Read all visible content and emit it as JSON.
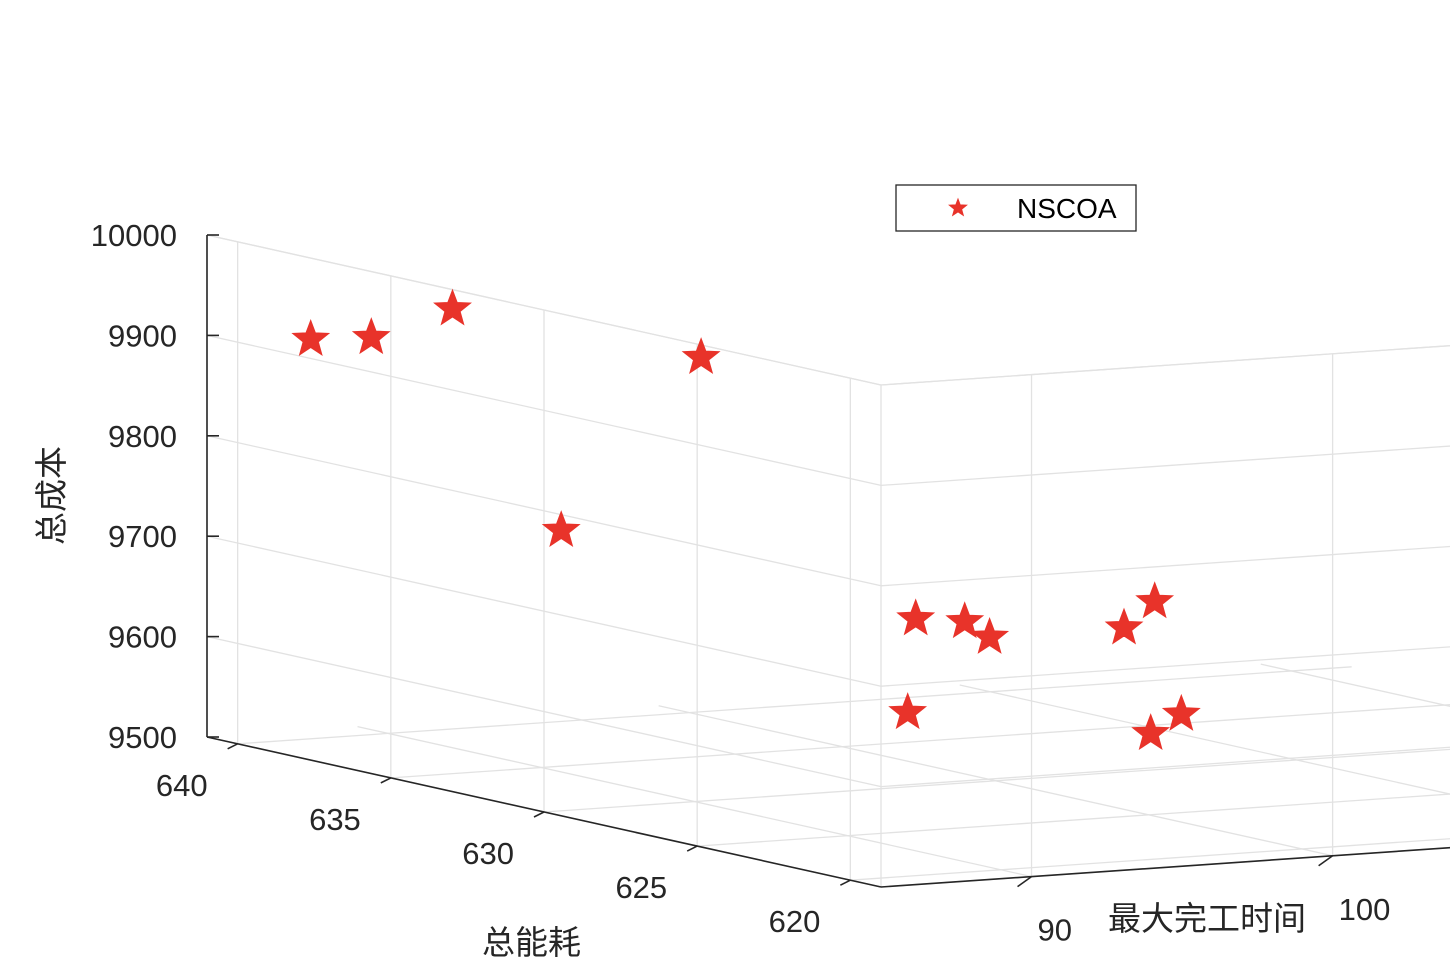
{
  "chart_data": {
    "type": "scatter",
    "view": "3d",
    "xlabel": "最大完工时间",
    "ylabel": "总能耗",
    "zlabel": "总成本",
    "xlim": [
      85,
      122
    ],
    "ylim": [
      619,
      641
    ],
    "zlim": [
      9500,
      10000
    ],
    "xticks": [
      90,
      100,
      110,
      120
    ],
    "yticks": [
      620,
      625,
      630,
      635,
      640
    ],
    "zticks": [
      9500,
      9600,
      9700,
      9800,
      9900,
      10000
    ],
    "grid": true,
    "legend": {
      "entries": [
        "NSCOA"
      ],
      "location": "top-right"
    },
    "series": [
      {
        "name": "NSCOA",
        "marker": "star",
        "color": "#e8332a",
        "points": [
          {
            "x": 85.8,
            "y": 638.4,
            "z": 9912
          },
          {
            "x": 87.2,
            "y": 637.8,
            "z": 9915
          },
          {
            "x": 90.0,
            "y": 637.9,
            "z": 9937
          },
          {
            "x": 95.0,
            "y": 634.7,
            "z": 9900
          },
          {
            "x": 87.2,
            "y": 631.6,
            "z": 9765
          },
          {
            "x": 94.0,
            "y": 624.3,
            "z": 9694
          },
          {
            "x": 94.7,
            "y": 625.8,
            "z": 9698
          },
          {
            "x": 94.7,
            "y": 627.4,
            "z": 9690
          },
          {
            "x": 94.7,
            "y": 620.6,
            "z": 9727
          },
          {
            "x": 94.7,
            "y": 619.6,
            "z": 9760
          },
          {
            "x": 92.5,
            "y": 625.5,
            "z": 9614
          },
          {
            "x": 96.5,
            "y": 620.5,
            "z": 9638
          },
          {
            "x": 96.5,
            "y": 621.5,
            "z": 9612
          },
          {
            "x": 106.0,
            "y": 619.7,
            "z": 9706
          },
          {
            "x": 108.0,
            "y": 620.6,
            "z": 9687
          },
          {
            "x": 113.5,
            "y": 619.2,
            "z": 9690
          }
        ]
      }
    ]
  }
}
